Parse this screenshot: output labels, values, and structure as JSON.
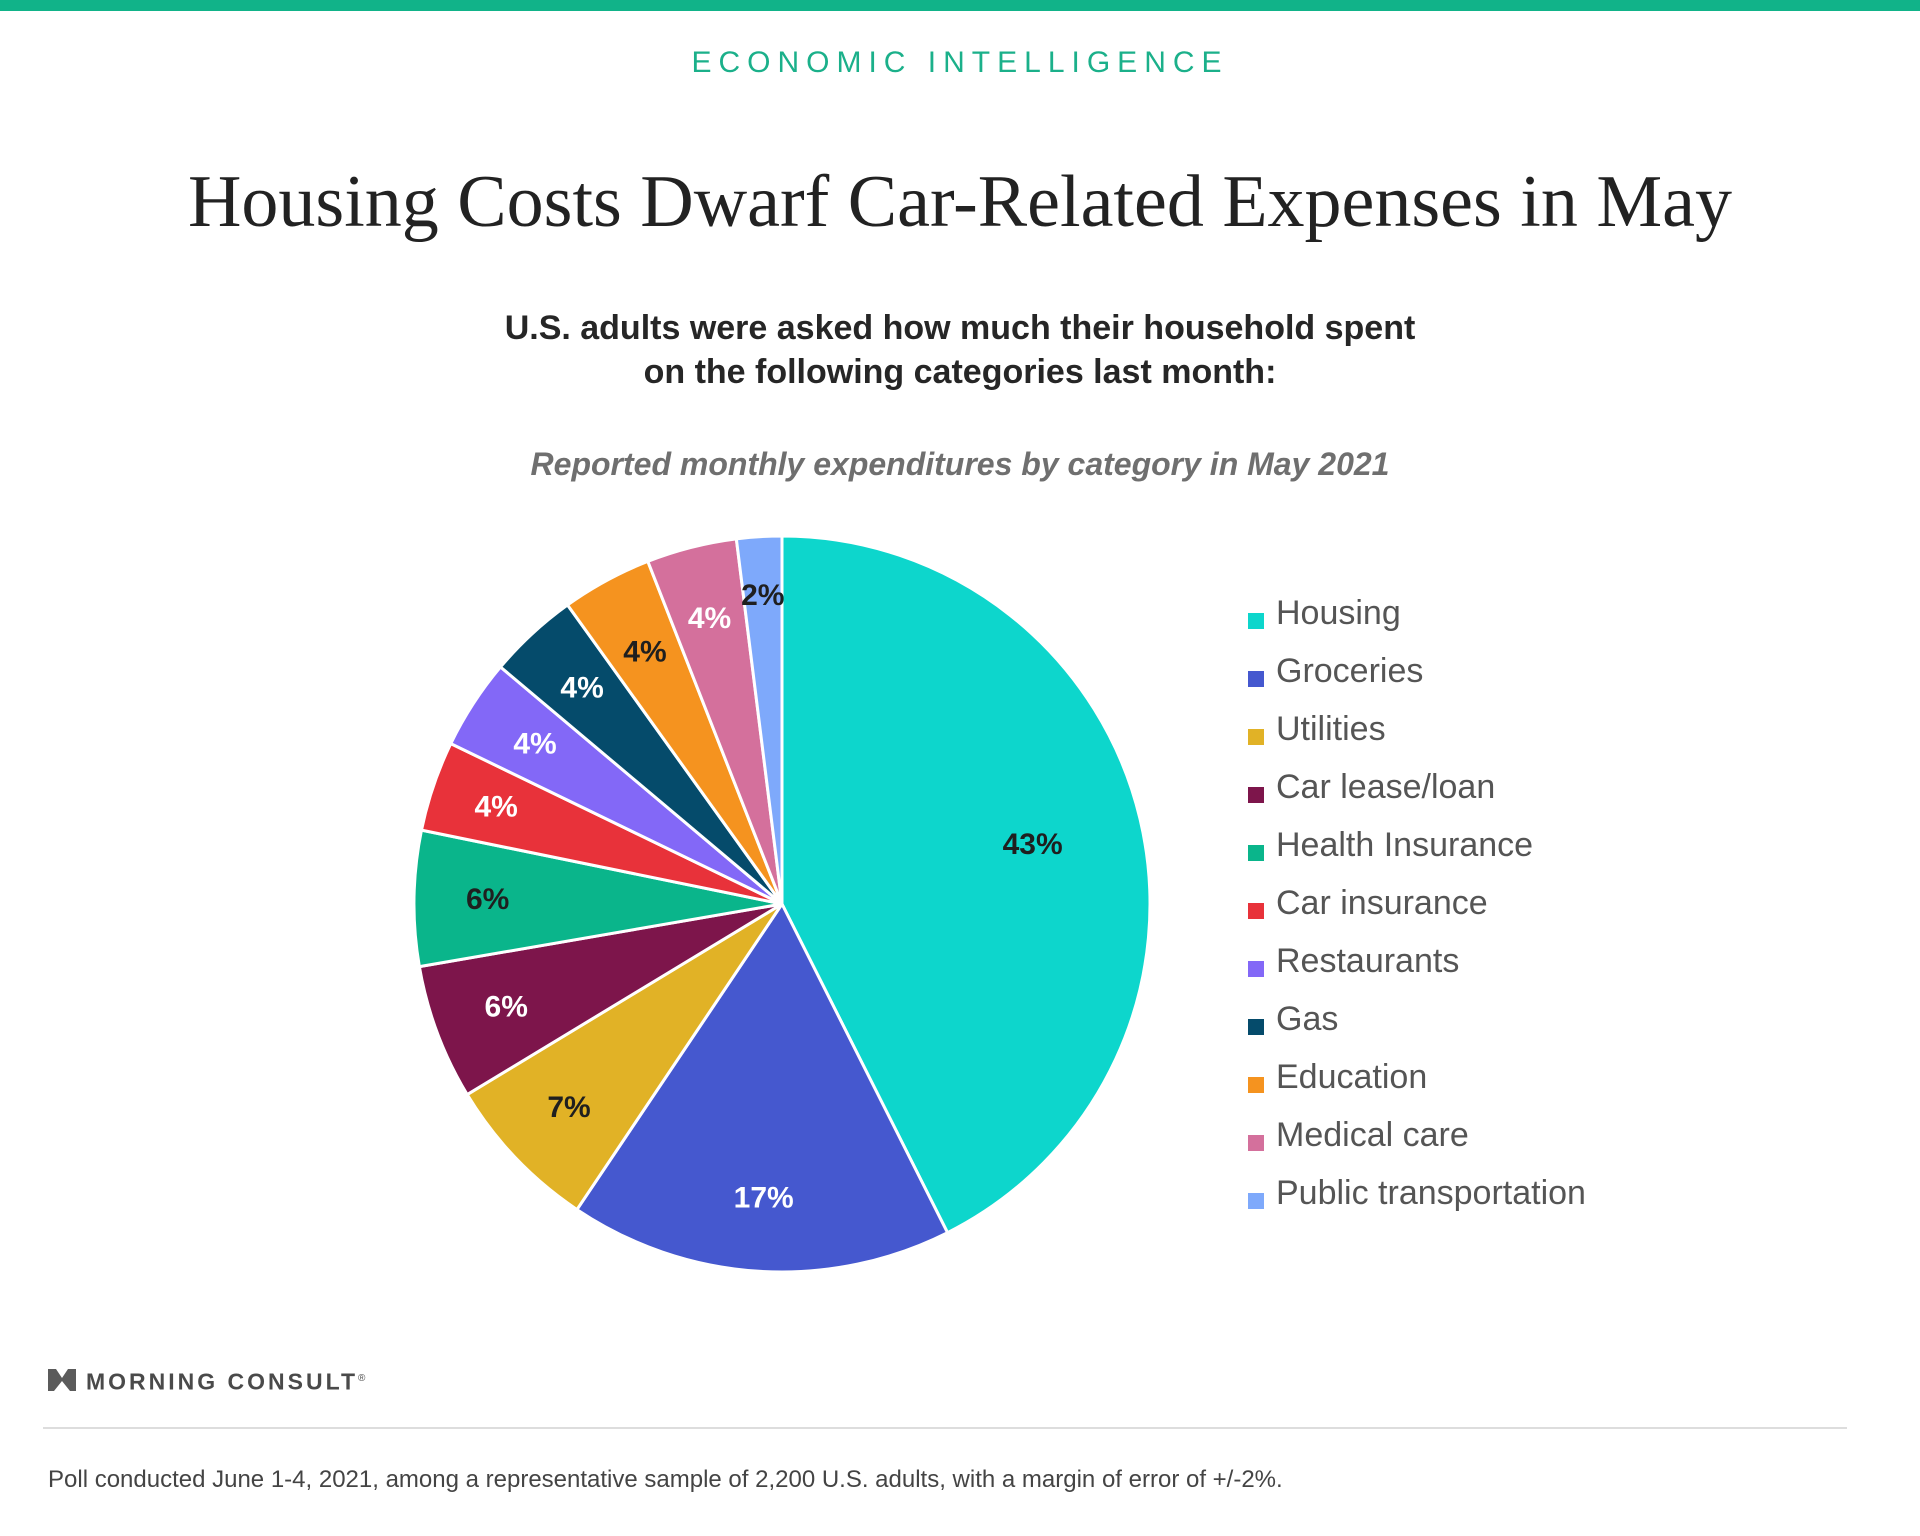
{
  "header": {
    "kicker": "ECONOMIC INTELLIGENCE",
    "title": "Housing Costs Dwarf Car-Related Expenses in May",
    "subtitle_line1": "U.S. adults were asked how much their household spent",
    "subtitle_line2": "on the following categories last month:",
    "accent_color": "#11b389"
  },
  "chart_data": {
    "type": "pie",
    "title": "Reported monthly expenditures by category in May 2021",
    "legend_position": "right",
    "slices": [
      {
        "label": "Housing",
        "value": 43,
        "display": "43%",
        "color": "#0dd6cc",
        "label_color": "#1f1f1f"
      },
      {
        "label": "Groceries",
        "value": 17,
        "display": "17%",
        "color": "#4558cf",
        "label_color": "#ffffff"
      },
      {
        "label": "Utilities",
        "value": 7,
        "display": "7%",
        "color": "#e1b226",
        "label_color": "#1f1f1f"
      },
      {
        "label": "Car lease/loan",
        "value": 6,
        "display": "6%",
        "color": "#7d154b",
        "label_color": "#ffffff"
      },
      {
        "label": "Health Insurance",
        "value": 6,
        "display": "6%",
        "color": "#0ab58b",
        "label_color": "#1f1f1f"
      },
      {
        "label": "Car insurance",
        "value": 4,
        "display": "4%",
        "color": "#e8323a",
        "label_color": "#ffffff"
      },
      {
        "label": "Restaurants",
        "value": 4,
        "display": "4%",
        "color": "#8368f7",
        "label_color": "#ffffff"
      },
      {
        "label": "Gas",
        "value": 4,
        "display": "4%",
        "color": "#054b6b",
        "label_color": "#ffffff"
      },
      {
        "label": "Education",
        "value": 4,
        "display": "4%",
        "color": "#f5931f",
        "label_color": "#1f1f1f"
      },
      {
        "label": "Medical care",
        "value": 4,
        "display": "4%",
        "color": "#d4709c",
        "label_color": "#ffffff"
      },
      {
        "label": "Public transportation",
        "value": 2,
        "display": "2%",
        "color": "#7ea9fb",
        "label_color": "#1f1f1f"
      }
    ]
  },
  "footer": {
    "brand": "MORNING CONSULT",
    "brand_mark": "®",
    "note": "Poll conducted June 1-4, 2021, among a representative sample of 2,200 U.S. adults, with a margin of error of +/-2%."
  }
}
